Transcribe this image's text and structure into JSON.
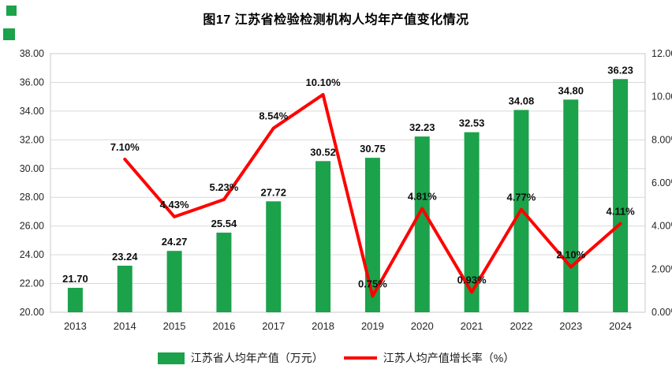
{
  "title": "图17  江苏省检验检测机构人均年产值变化情况",
  "colors": {
    "bar": "#1BA24B",
    "line": "#FF0000",
    "grid": "#D9D9D9",
    "plot_border": "#C9C9C9",
    "decor": "#1BA24B"
  },
  "chart_data": {
    "type": "bar",
    "subtype": "combo-bar-line",
    "title": "图17  江苏省检验检测机构人均年产值变化情况",
    "categories": [
      "2013",
      "2014",
      "2015",
      "2016",
      "2017",
      "2018",
      "2019",
      "2020",
      "2021",
      "2022",
      "2023",
      "2024"
    ],
    "series": [
      {
        "name": "江苏省人均年产值（万元）",
        "type": "bar",
        "axis": "left",
        "color": "#1BA24B",
        "values": [
          21.7,
          23.24,
          24.27,
          25.54,
          27.72,
          30.52,
          30.75,
          32.23,
          32.53,
          34.08,
          34.8,
          36.23
        ],
        "labels": [
          "21.70",
          "23.24",
          "24.27",
          "25.54",
          "27.72",
          "30.52",
          "30.75",
          "32.23",
          "32.53",
          "34.08",
          "34.80",
          "36.23"
        ]
      },
      {
        "name": "江苏人均产值增长率（%）",
        "type": "line",
        "axis": "right",
        "color": "#FF0000",
        "values": [
          null,
          7.1,
          4.43,
          5.23,
          8.54,
          10.1,
          0.75,
          4.81,
          0.93,
          4.77,
          2.1,
          4.11
        ],
        "labels": [
          "",
          "7.10%",
          "4.43%",
          "5.23%",
          "8.54%",
          "10.10%",
          "0.75%",
          "4.81%",
          "0.93%",
          "4.77%",
          "2.10%",
          "4.11%"
        ]
      }
    ],
    "left_axis": {
      "min": 20,
      "max": 38,
      "step": 2,
      "tick_labels": [
        "20.00",
        "22.00",
        "24.00",
        "26.00",
        "28.00",
        "30.00",
        "32.00",
        "34.00",
        "36.00",
        "38.00"
      ]
    },
    "right_axis": {
      "min": 0,
      "max": 12,
      "step": 2,
      "tick_labels": [
        "0.00%",
        "2.00%",
        "4.00%",
        "6.00%",
        "8.00%",
        "10.00%",
        "12.00%"
      ]
    },
    "grid": true,
    "legend_position": "bottom"
  }
}
